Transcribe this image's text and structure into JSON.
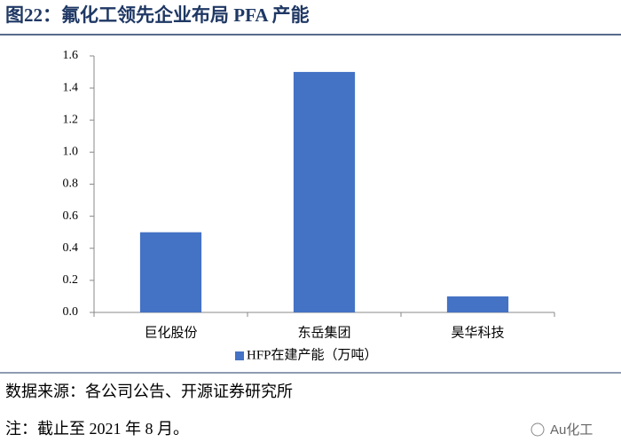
{
  "chart_data": {
    "type": "bar",
    "title": "图22：氟化工领先企业布局 PFA 产能",
    "categories": [
      "巨化股份",
      "东岳集团",
      "昊华科技"
    ],
    "series": [
      {
        "name": "HFP在建产能（万吨）",
        "color": "#4472c4",
        "values": [
          0.5,
          1.5,
          0.1
        ]
      }
    ],
    "ylim": [
      0,
      1.6
    ],
    "yticks": [
      {
        "value": 0,
        "label": "0.0"
      },
      0.2,
      0.4,
      0.6,
      0.8,
      {
        "value": 1,
        "label": "1.0"
      },
      1.2,
      1.4,
      1.6
    ],
    "grid": false,
    "legend": "bottom",
    "source": "数据来源：各公司公告、开源证券研究所",
    "note": "注：截止至 2021 年 8 月。",
    "watermark": "Au化工"
  }
}
